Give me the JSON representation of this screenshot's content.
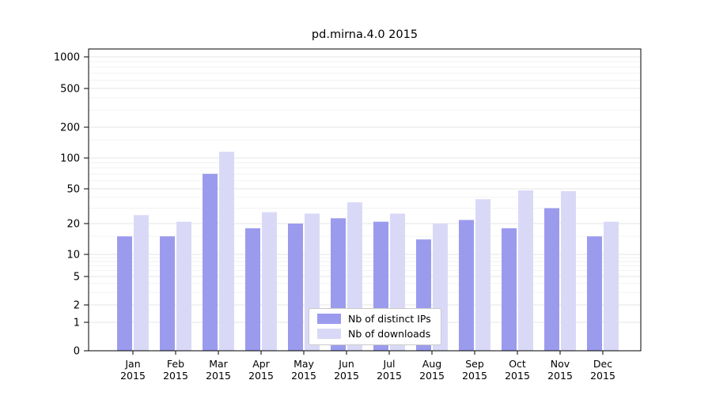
{
  "title": "pd.mirna.4.0 2015",
  "chart_data": {
    "type": "bar",
    "title": "pd.mirna.4.0 2015",
    "categories": [
      "Jan",
      "Feb",
      "Mar",
      "Apr",
      "May",
      "Jun",
      "Jul",
      "Aug",
      "Sep",
      "Oct",
      "Nov",
      "Dec"
    ],
    "year": "2015",
    "series": [
      {
        "name": "Nb of distinct IPs",
        "color": "#9b9bee",
        "values": [
          15,
          15,
          70,
          18,
          20,
          23,
          21,
          14,
          22,
          18,
          30,
          15
        ]
      },
      {
        "name": "Nb of downloads",
        "color": "#d9d9f7",
        "values": [
          25,
          21,
          115,
          27,
          26,
          35,
          26,
          20,
          38,
          48,
          47,
          21
        ]
      }
    ],
    "xlabel": "",
    "ylabel": "",
    "yticks": [
      0,
      1,
      2,
      5,
      10,
      20,
      50,
      100,
      200,
      500,
      1000
    ],
    "scale": "log-like with custom ticks",
    "grid": true,
    "legend_position": "lower center"
  }
}
